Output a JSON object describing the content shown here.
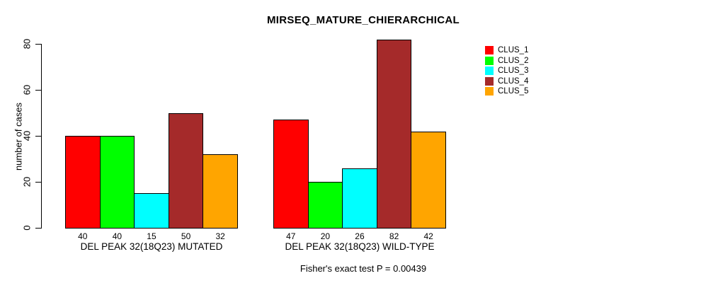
{
  "chart": {
    "title": "MIRSEQ_MATURE_CHIERARCHICAL",
    "ylabel": "number of cases",
    "subtitle": "Fisher's exact test P = 0.00439"
  },
  "chart_data": {
    "type": "bar",
    "title": "MIRSEQ_MATURE_CHIERARCHICAL",
    "xlabel": "",
    "ylabel": "number of cases",
    "ylim": [
      0,
      80
    ],
    "yticks": [
      0,
      20,
      40,
      60,
      80
    ],
    "grid": false,
    "legend_position": "top-right",
    "annotation": "Fisher's exact test P = 0.00439",
    "categories": [
      "DEL PEAK 32(18Q23) MUTATED",
      "DEL PEAK 32(18Q23) WILD-TYPE"
    ],
    "series": [
      {
        "name": "CLUS_1",
        "color": "#FF0000",
        "values": [
          40,
          47
        ]
      },
      {
        "name": "CLUS_2",
        "color": "#00FF00",
        "values": [
          40,
          20
        ]
      },
      {
        "name": "CLUS_3",
        "color": "#00FFFF",
        "values": [
          15,
          26
        ]
      },
      {
        "name": "CLUS_4",
        "color": "#A52A2A",
        "values": [
          50,
          82
        ]
      },
      {
        "name": "CLUS_5",
        "color": "#FFA500",
        "values": [
          32,
          42
        ]
      }
    ]
  }
}
